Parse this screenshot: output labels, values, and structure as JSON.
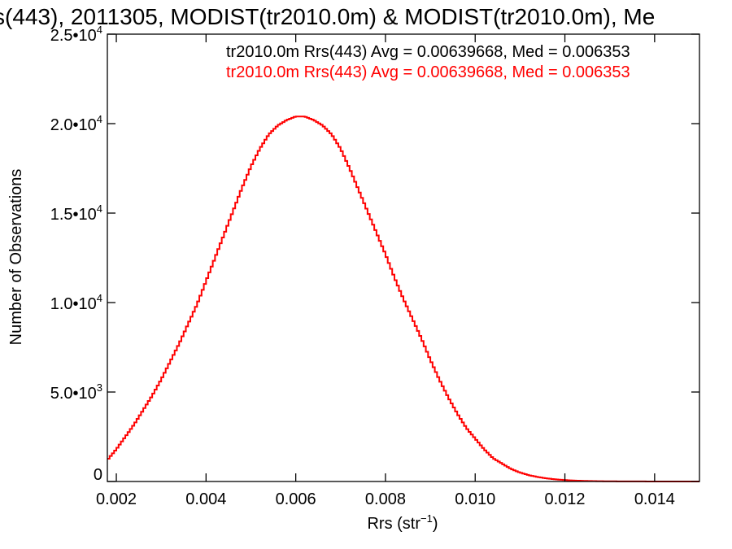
{
  "chart_data": {
    "type": "line",
    "title": "s(443), 2011305, MODIST(tr2010.0m) & MODIST(tr2010.0m), Me",
    "xlabel": "Rrs (str",
    "xlabel_sup": "−1",
    "xlabel_tail": ")",
    "ylabel": "Number of Observations",
    "xlim": [
      0.0018,
      0.015
    ],
    "ylim": [
      0,
      25000
    ],
    "x_ticks": [
      {
        "value": 0.002,
        "label": "0.002"
      },
      {
        "value": 0.004,
        "label": "0.004"
      },
      {
        "value": 0.006,
        "label": "0.006"
      },
      {
        "value": 0.008,
        "label": "0.008"
      },
      {
        "value": 0.01,
        "label": "0.010"
      },
      {
        "value": 0.012,
        "label": "0.012"
      },
      {
        "value": 0.014,
        "label": "0.014"
      }
    ],
    "y_ticks": [
      {
        "value": 0,
        "label": "0",
        "sup": ""
      },
      {
        "value": 5000,
        "label": "5.0•10",
        "sup": "3"
      },
      {
        "value": 10000,
        "label": "1.0•10",
        "sup": "4"
      },
      {
        "value": 15000,
        "label": "1.5•10",
        "sup": "4"
      },
      {
        "value": 20000,
        "label": "2.0•10",
        "sup": "4"
      },
      {
        "value": 25000,
        "label": "2.5•10",
        "sup": "4"
      }
    ],
    "annotations": [
      {
        "text": "tr2010.0m Rrs(443) Avg = 0.00639668, Med = 0.006353",
        "color": "#000000"
      },
      {
        "text": "tr2010.0m Rrs(443) Avg = 0.00639668, Med = 0.006353",
        "color": "#ff0000"
      }
    ],
    "series": [
      {
        "color": "#ff0000",
        "x": [
          0.0018,
          0.002,
          0.0022,
          0.0024,
          0.0026,
          0.0028,
          0.003,
          0.0032,
          0.0034,
          0.0036,
          0.0038,
          0.004,
          0.0042,
          0.0044,
          0.0046,
          0.0048,
          0.005,
          0.0052,
          0.0054,
          0.0056,
          0.0058,
          0.006,
          0.0062,
          0.0064,
          0.0066,
          0.0068,
          0.007,
          0.0072,
          0.0074,
          0.0076,
          0.0078,
          0.008,
          0.0082,
          0.0084,
          0.0086,
          0.0088,
          0.009,
          0.0092,
          0.0094,
          0.0096,
          0.0098,
          0.01,
          0.0102,
          0.0104,
          0.0106,
          0.0108,
          0.011,
          0.0112,
          0.0114,
          0.0116,
          0.0118,
          0.012,
          0.0122,
          0.0124,
          0.0126,
          0.0128,
          0.013,
          0.0132,
          0.0134,
          0.0136,
          0.0138,
          0.014,
          0.0142,
          0.0144,
          0.0146,
          0.0148,
          0.015
        ],
        "values": [
          1200,
          1800,
          2500,
          3200,
          4000,
          4800,
          5700,
          6700,
          7700,
          8800,
          9900,
          11200,
          12500,
          13800,
          15100,
          16400,
          17600,
          18600,
          19400,
          19900,
          20200,
          20400,
          20400,
          20200,
          19900,
          19400,
          18600,
          17500,
          16300,
          15100,
          13900,
          12700,
          11400,
          10200,
          9100,
          8000,
          6800,
          5700,
          4700,
          3800,
          3000,
          2400,
          1800,
          1300,
          1000,
          700,
          500,
          350,
          250,
          170,
          120,
          80,
          55,
          35,
          25,
          15,
          10,
          8,
          5,
          4,
          3,
          2,
          2,
          1,
          1,
          1,
          1
        ]
      }
    ]
  }
}
